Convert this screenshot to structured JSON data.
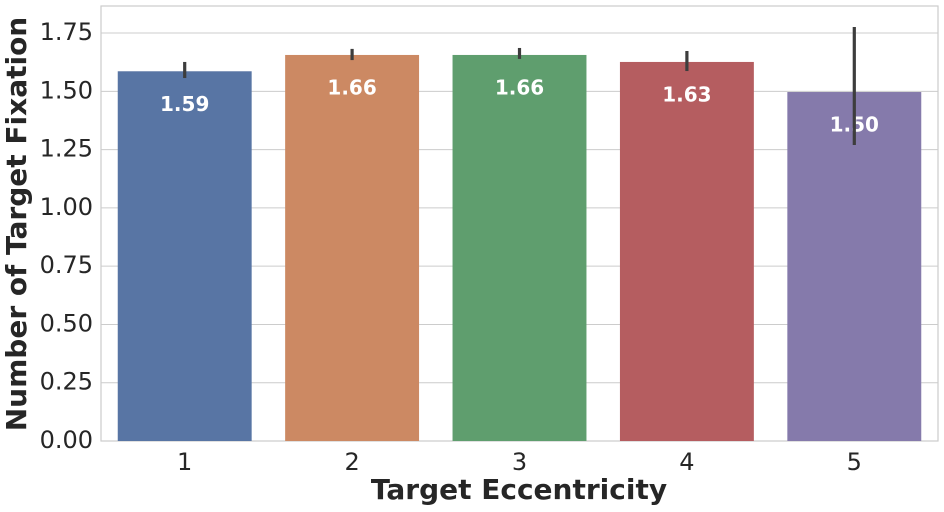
{
  "chart_data": {
    "type": "bar",
    "x_label": "Target Eccentricity",
    "y_label": "Number of Target Fixation",
    "categories": [
      "1",
      "2",
      "3",
      "4",
      "5"
    ],
    "values": [
      1.586,
      1.656,
      1.656,
      1.626,
      1.497
    ],
    "value_labels": [
      "1.59",
      "1.66",
      "1.66",
      "1.63",
      "1.50"
    ],
    "ci_low": [
      1.557,
      1.634,
      1.639,
      1.587,
      1.27
    ],
    "ci_high": [
      1.626,
      1.682,
      1.686,
      1.673,
      1.776
    ],
    "colors": [
      "#5875a4",
      "#cc8963",
      "#5f9e6e",
      "#b55d60",
      "#857aab"
    ],
    "ylim": [
      0,
      1.866
    ],
    "yticks": [
      {
        "value": 0,
        "label": "0.00"
      },
      {
        "value": 0.25,
        "label": "0.25"
      },
      {
        "value": 0.5,
        "label": "0.50"
      },
      {
        "value": 0.75,
        "label": "0.75"
      },
      {
        "value": 1,
        "label": "1.00"
      },
      {
        "value": 1.25,
        "label": "1.25"
      },
      {
        "value": 1.5,
        "label": "1.50"
      },
      {
        "value": 1.75,
        "label": "1.75"
      }
    ],
    "grid": true
  }
}
